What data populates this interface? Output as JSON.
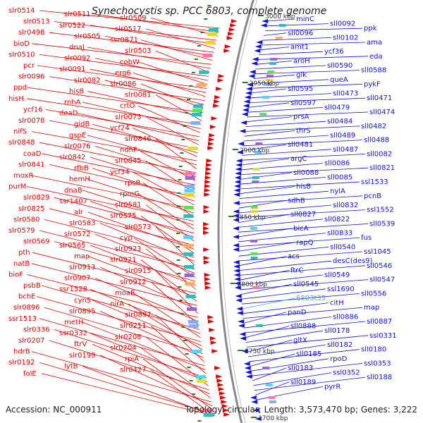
{
  "title": "Synechocystis sp. PCC 6803, complete genome",
  "footer": {
    "accession": "Accession: NC_000911",
    "stats": "Topology: circular; Length: 3,573,470 bp; Genes: 3,222"
  },
  "colors": {
    "forward_strand": "#e00000",
    "reverse_strand": "#1111dd",
    "highlight_label": "#4aa3df",
    "backbone": "#888888",
    "tick": "#2a7a2a"
  },
  "ruler_labels": [
    "3000 kbp",
    "2950 kbp",
    "2900 kbp",
    "2850 kbp",
    "2800 kbp",
    "2750 kbp",
    "2700 kbp"
  ],
  "forward_genes": [
    {
      "label": "slr0514"
    },
    {
      "label": "slr0511"
    },
    {
      "label": "slr0509"
    },
    {
      "label": "slr0513"
    },
    {
      "label": "slr0522"
    },
    {
      "label": "slr0517"
    },
    {
      "label": "slr0498"
    },
    {
      "label": "slr0505"
    },
    {
      "label": "ssr0871"
    },
    {
      "label": "bioD"
    },
    {
      "label": "dnaJ"
    },
    {
      "label": "slr0503"
    },
    {
      "label": "slr0510"
    },
    {
      "label": "slr0092"
    },
    {
      "label": "cobW"
    },
    {
      "label": "pcr"
    },
    {
      "label": "slr0091"
    },
    {
      "label": "erg6"
    },
    {
      "label": "slr0096"
    },
    {
      "label": "slr0082"
    },
    {
      "label": "slr0086"
    },
    {
      "label": "ppd"
    },
    {
      "label": "hisB"
    },
    {
      "label": "slr0081"
    },
    {
      "label": "hisH"
    },
    {
      "label": "rnhA"
    },
    {
      "label": "crtO"
    },
    {
      "label": "ycf16"
    },
    {
      "label": "deaD"
    },
    {
      "label": "slr0073"
    },
    {
      "label": "slr0078"
    },
    {
      "label": "gidB"
    },
    {
      "label": "ycf24"
    },
    {
      "label": "nifS"
    },
    {
      "label": "gspE"
    },
    {
      "label": "slr0846"
    },
    {
      "label": "slr0848"
    },
    {
      "label": "slr0076"
    },
    {
      "label": "ndhF"
    },
    {
      "label": "coaD"
    },
    {
      "label": "slr0842"
    },
    {
      "label": "slr0845"
    },
    {
      "label": "slr0841"
    },
    {
      "label": "rfbB"
    },
    {
      "label": "ycf34"
    },
    {
      "label": "moxR"
    },
    {
      "label": "hemH"
    },
    {
      "label": "rpsR"
    },
    {
      "label": "purM"
    },
    {
      "label": "dnaB"
    },
    {
      "label": "rpmG"
    },
    {
      "label": "slr0829"
    },
    {
      "label": "ssr1407"
    },
    {
      "label": "slr0581"
    },
    {
      "label": "slr0825"
    },
    {
      "label": "alr"
    },
    {
      "label": "slr0575"
    },
    {
      "label": "slr0580"
    },
    {
      "label": "slr0583"
    },
    {
      "label": "slr0573"
    },
    {
      "label": "slr0579"
    },
    {
      "label": "slr0572"
    },
    {
      "label": "cyp"
    },
    {
      "label": "slr0569"
    },
    {
      "label": "slr0565"
    },
    {
      "label": "slr0923"
    },
    {
      "label": "pth"
    },
    {
      "label": "map"
    },
    {
      "label": "slr0921"
    },
    {
      "label": "natB"
    },
    {
      "label": "slr0913"
    },
    {
      "label": "slr0915"
    },
    {
      "label": "bioF"
    },
    {
      "label": "slr0907"
    },
    {
      "label": "slr0912"
    },
    {
      "label": "psbB"
    },
    {
      "label": "ssr1528"
    },
    {
      "label": "moaE"
    },
    {
      "label": "bchE"
    },
    {
      "label": "cynS"
    },
    {
      "label": "nirA"
    },
    {
      "label": "slr0896"
    },
    {
      "label": "slr0895"
    },
    {
      "label": "slr0897"
    },
    {
      "label": "ssr1513"
    },
    {
      "label": "metH"
    },
    {
      "label": "slr0211"
    },
    {
      "label": "slr0336"
    },
    {
      "label": "ssr0332"
    },
    {
      "label": "slr0208"
    },
    {
      "label": "slr0207"
    },
    {
      "label": "ftrV"
    },
    {
      "label": "slr0204"
    },
    {
      "label": "hdrB"
    },
    {
      "label": "slr0199"
    },
    {
      "label": "rpiA"
    },
    {
      "label": "slr0192"
    },
    {
      "label": "lytB"
    },
    {
      "label": "slr0427"
    },
    {
      "label": "folE"
    }
  ],
  "reverse_genes": [
    {
      "label": "minC"
    },
    {
      "label": "sll0092"
    },
    {
      "label": "ppk"
    },
    {
      "label": "sll0096"
    },
    {
      "label": "sll0102"
    },
    {
      "label": "ama"
    },
    {
      "label": "amt1"
    },
    {
      "label": "ycf36"
    },
    {
      "label": "eda"
    },
    {
      "label": "aroH"
    },
    {
      "label": "sll0590"
    },
    {
      "label": "sll0588"
    },
    {
      "label": "glk"
    },
    {
      "label": "queA"
    },
    {
      "label": "pykF"
    },
    {
      "label": "sll0595"
    },
    {
      "label": "sll0473"
    },
    {
      "label": "sll0471"
    },
    {
      "label": "sll0597"
    },
    {
      "label": "sll0479"
    },
    {
      "label": "sll0474"
    },
    {
      "label": "prsA"
    },
    {
      "label": "sll0484"
    },
    {
      "label": "sll0482"
    },
    {
      "label": "thrS"
    },
    {
      "label": "sll0489"
    },
    {
      "label": "sll0488"
    },
    {
      "label": "sll0481"
    },
    {
      "label": "sll0487"
    },
    {
      "label": "sll0082"
    },
    {
      "label": "argC"
    },
    {
      "label": "sll0086"
    },
    {
      "label": "sll0821"
    },
    {
      "label": "sll0088"
    },
    {
      "label": "sll0085"
    },
    {
      "label": "ssl1533"
    },
    {
      "label": "hisB"
    },
    {
      "label": "nylA"
    },
    {
      "label": "pcnB"
    },
    {
      "label": "sdhB"
    },
    {
      "label": "sll0832"
    },
    {
      "label": "ssl1552"
    },
    {
      "label": "sll0827"
    },
    {
      "label": "sll0822"
    },
    {
      "label": "sll0539"
    },
    {
      "label": "bicA"
    },
    {
      "label": "sll0833"
    },
    {
      "label": "fus"
    },
    {
      "label": "rapQ"
    },
    {
      "label": "sll0540"
    },
    {
      "label": "ssl1045"
    },
    {
      "label": "acs"
    },
    {
      "label": "desC(des9)"
    },
    {
      "label": "sll0546"
    },
    {
      "label": "ftrC"
    },
    {
      "label": "sll0549"
    },
    {
      "label": "sll0547"
    },
    {
      "label": "sll0545"
    },
    {
      "label": "ssl1690"
    },
    {
      "label": "sll0556"
    },
    {
      "label": "6803t35"
    },
    {
      "label": "citH"
    },
    {
      "label": "map"
    },
    {
      "label": "panD"
    },
    {
      "label": "sll0886"
    },
    {
      "label": "sll0887"
    },
    {
      "label": "sll0888"
    },
    {
      "label": "sll0178"
    },
    {
      "label": "ssl0331"
    },
    {
      "label": "gltX"
    },
    {
      "label": "sll0182"
    },
    {
      "label": "sll0180"
    },
    {
      "label": "sll0185"
    },
    {
      "label": "rpoD"
    },
    {
      "label": "ssl0353"
    },
    {
      "label": "sll0183"
    },
    {
      "label": "ssl0352"
    },
    {
      "label": "sll0188"
    },
    {
      "label": "sll0189"
    },
    {
      "label": "pyrR"
    }
  ]
}
